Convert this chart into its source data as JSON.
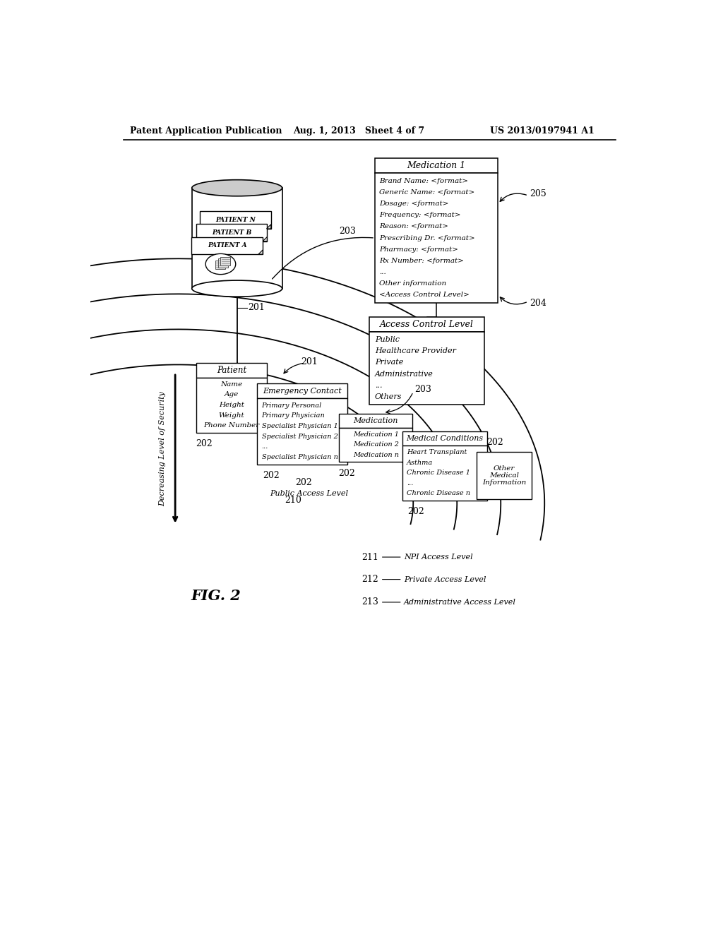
{
  "header_left": "Patent Application Publication",
  "header_mid": "Aug. 1, 2013   Sheet 4 of 7",
  "header_right": "US 2013/0197941 A1",
  "fig_label": "FIG. 2",
  "bg_color": "#ffffff",
  "medication1_title": "Medication 1",
  "medication1_body": [
    "Brand Name: <format>",
    "Generic Name: <format>",
    "Dosage: <format>",
    "Frequency: <format>",
    "Reason: <format>",
    "Prescribing Dr. <format>",
    "Pharmacy: <format>",
    "Rx Number: <format>",
    "...",
    "Other information",
    "<Access Control Level>"
  ],
  "access_control_title": "Access Control Level",
  "access_control_body": [
    "Public",
    "Healthcare Provider",
    "Private",
    "Administrative",
    "...",
    "Others"
  ],
  "patient_title": "Patient",
  "patient_body": [
    "Name",
    "Age",
    "Height",
    "Weight",
    "Phone Number"
  ],
  "emergency_title": "Emergency Contact",
  "emergency_body": [
    "Primary Personal",
    "Primary Physician",
    "Specialist Physician 1",
    "Specialist Physician 2",
    "...",
    "Specialist Physician n"
  ],
  "medication_title": "Medication",
  "medication_body": [
    "Medication 1",
    "Medication 2",
    "Medication n"
  ],
  "medical_title": "Medical Conditions",
  "medical_body": [
    "Heart Transplant",
    "Asthma",
    "Chronic Disease 1",
    "...",
    "Chronic Disease n"
  ],
  "other_title": "Other\nMedical\nInformation",
  "db_labels": [
    "PATIENT N",
    "PATIENT B",
    "PATIENT A"
  ],
  "arrow_label": "Decreasing Level of Security",
  "access_210": "Public Access Level",
  "access_211": "NPI Access Level",
  "access_212": "Private Access Level",
  "access_213": "Administrative Access Level"
}
